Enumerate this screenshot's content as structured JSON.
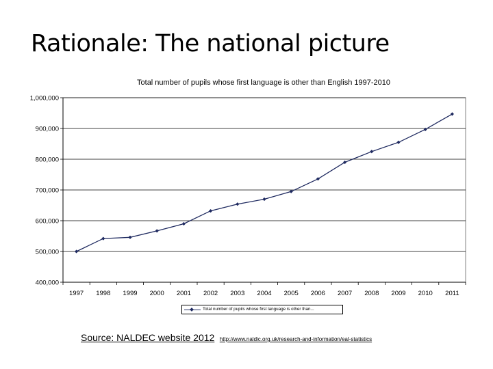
{
  "slide": {
    "title": "Rationale: The national picture"
  },
  "chart_data": {
    "type": "line",
    "title": "Total number of pupils whose first language is other than English 1997-2010",
    "xlabel": "",
    "ylabel": "",
    "ylim": [
      400000,
      1000000
    ],
    "yticks": [
      "1,000,000",
      "900,000",
      "800,000",
      "700,000",
      "600,000",
      "500,000",
      "400,000"
    ],
    "ytick_values": [
      1000000,
      900000,
      800000,
      700000,
      600000,
      500000,
      400000
    ],
    "categories": [
      "1997",
      "1998",
      "1999",
      "2000",
      "2001",
      "2002",
      "2003",
      "2004",
      "2005",
      "2006",
      "2007",
      "2008",
      "2009",
      "2010",
      "2011"
    ],
    "series": [
      {
        "name": "Total number of pupils whose first language is other than...",
        "values": [
          500000,
          542000,
          546000,
          567000,
          590000,
          632000,
          654000,
          670000,
          695000,
          736000,
          790000,
          825000,
          855000,
          897000,
          947000
        ],
        "color": "#1f2a60"
      }
    ],
    "grid": true,
    "legend_position": "bottom"
  },
  "source": {
    "text": "Source: NALDEC website 2012",
    "url": "http://www.naldic.org.uk/research-and-information/eal-statistics"
  }
}
